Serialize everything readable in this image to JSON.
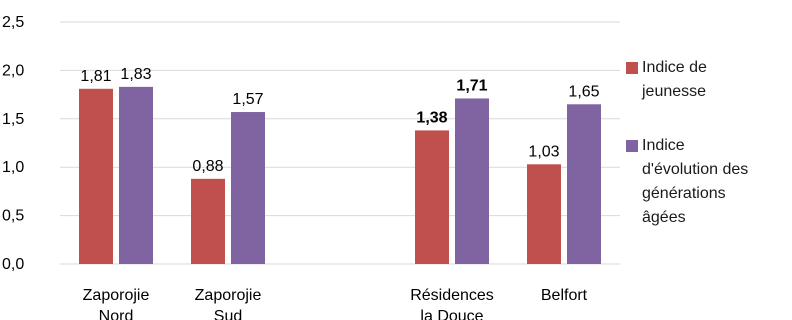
{
  "chart_data": {
    "type": "bar",
    "categories": [
      [
        "Zaporojie",
        "Nord"
      ],
      [
        "Zaporojie",
        "Sud"
      ],
      [
        "",
        ""
      ],
      [
        "Résidences",
        "la Douce"
      ],
      [
        "Belfort",
        ""
      ]
    ],
    "series": [
      {
        "name": "Indice de jeunesse",
        "name_lines": [
          "Indice de",
          "jeunesse"
        ],
        "color": "#c0504d",
        "values": [
          1.81,
          0.88,
          null,
          1.38,
          1.03
        ],
        "labels": [
          "1,81",
          "0,88",
          "",
          "1,38",
          "1,03"
        ],
        "bold": [
          false,
          false,
          false,
          true,
          false
        ]
      },
      {
        "name": "Indice d'évolution des générations âgées",
        "name_lines": [
          "Indice",
          "d'évolution des",
          "générations",
          "âgées"
        ],
        "color": "#8064a2",
        "values": [
          1.83,
          1.57,
          null,
          1.71,
          1.65
        ],
        "labels": [
          "1,83",
          "1,57",
          "",
          "1,71",
          "1,65"
        ],
        "bold": [
          false,
          false,
          false,
          true,
          false
        ]
      }
    ],
    "ylim": [
      0,
      2.5
    ],
    "yticks": [
      0,
      0.5,
      1.0,
      1.5,
      2.0,
      2.5
    ],
    "ytick_labels": [
      "0,0",
      "0,5",
      "1,0",
      "1,5",
      "2,0",
      "2,5"
    ],
    "grid": true,
    "gridColor": "#d9d9d9",
    "legend": "right"
  }
}
